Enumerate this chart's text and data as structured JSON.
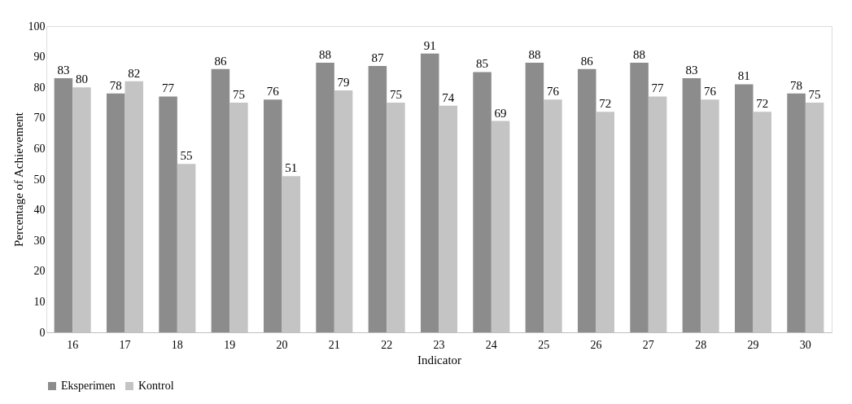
{
  "chart_data": {
    "type": "bar",
    "xlabel": "Indicator",
    "ylabel": "Percentage of Achievement",
    "categories": [
      "16",
      "17",
      "18",
      "19",
      "20",
      "21",
      "22",
      "23",
      "24",
      "25",
      "26",
      "27",
      "28",
      "29",
      "30"
    ],
    "series": [
      {
        "name": "Eksperimen",
        "color": "#8c8c8c",
        "values": [
          83,
          78,
          77,
          86,
          76,
          88,
          87,
          91,
          85,
          88,
          86,
          88,
          83,
          81,
          78
        ]
      },
      {
        "name": "Kontrol",
        "color": "#c4c4c4",
        "values": [
          80,
          82,
          55,
          75,
          51,
          79,
          75,
          74,
          69,
          76,
          72,
          77,
          76,
          72,
          75
        ]
      }
    ],
    "ylim": [
      0,
      100
    ],
    "yticks": [
      0,
      10,
      20,
      30,
      40,
      50,
      60,
      70,
      80,
      90,
      100
    ],
    "data_labels": true,
    "legend": "bottom",
    "grid": false
  }
}
